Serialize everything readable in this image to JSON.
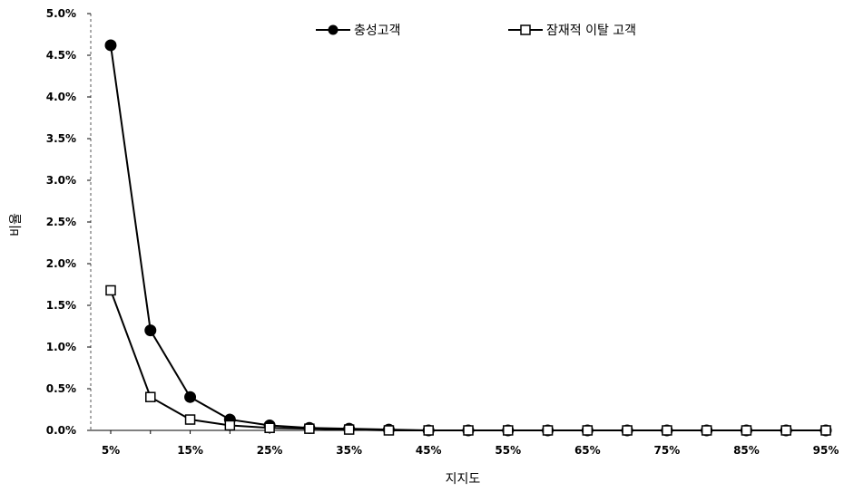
{
  "chart_data": {
    "type": "line",
    "title": "",
    "xlabel": "지지도",
    "ylabel": "비율",
    "x": [
      "5%",
      "10%",
      "15%",
      "20%",
      "25%",
      "30%",
      "35%",
      "40%",
      "45%",
      "50%",
      "55%",
      "60%",
      "65%",
      "70%",
      "75%",
      "80%",
      "85%",
      "90%",
      "95%"
    ],
    "x_tick_labels": [
      "5%",
      "15%",
      "25%",
      "35%",
      "45%",
      "55%",
      "65%",
      "75%",
      "85%",
      "95%"
    ],
    "ylim": [
      0,
      5.0
    ],
    "y_unit": "%",
    "y_tick_labels": [
      "0.0%",
      "0.5%",
      "1.0%",
      "1.5%",
      "2.0%",
      "2.5%",
      "3.0%",
      "3.5%",
      "4.0%",
      "4.5%",
      "5.0%"
    ],
    "grid": false,
    "legend_position": "top",
    "series": [
      {
        "name": "충성고객",
        "marker": "filled-circle",
        "color": "#000000",
        "values": [
          4.62,
          1.2,
          0.4,
          0.13,
          0.06,
          0.03,
          0.02,
          0.01,
          0.0,
          0.0,
          0.0,
          0.0,
          0.0,
          0.0,
          0.0,
          0.0,
          0.0,
          0.0,
          0.0
        ]
      },
      {
        "name": "잠재적 이탈 고객",
        "marker": "open-square",
        "color": "#000000",
        "values": [
          1.68,
          0.4,
          0.13,
          0.06,
          0.03,
          0.02,
          0.01,
          0.0,
          0.0,
          0.0,
          0.0,
          0.0,
          0.0,
          0.0,
          0.0,
          0.0,
          0.0,
          0.0,
          0.0
        ]
      }
    ]
  }
}
